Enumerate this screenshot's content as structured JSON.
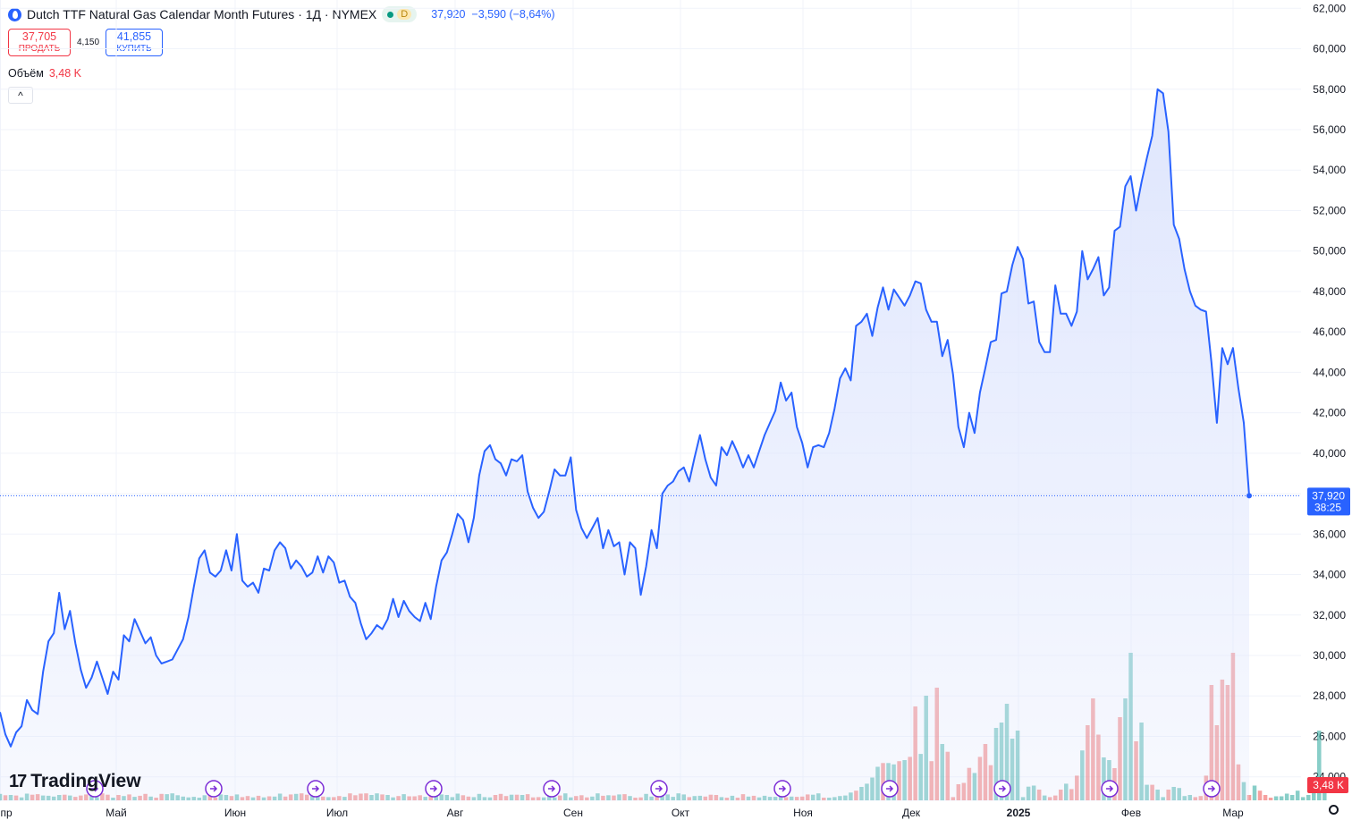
{
  "header": {
    "title": "Dutch TTF Natural Gas Calendar Month Futures · 1Д · NYMEX",
    "interval_badge": "D",
    "last_price": "37,920",
    "change": "−3,590 (−8,64%)"
  },
  "trade": {
    "sell_price": "37,705",
    "sell_label": "ПРОДАТЬ",
    "spread": "4,150",
    "buy_price": "41,855",
    "buy_label": "КУПИТЬ"
  },
  "volume_legend": {
    "label": "Объём",
    "value": "3,48 K"
  },
  "logo_text": "TradingView",
  "colors": {
    "line": "#2962ff",
    "fill": "#dfe6fd",
    "volume_up": "#26a69a",
    "volume_down": "#ef5350",
    "price_tag": "#2962ff",
    "volume_tag": "#f23645",
    "event_marker": "#7b2cd6"
  },
  "chart_data": {
    "type": "area",
    "y_axis": {
      "ticks": [
        "62,000",
        "60,000",
        "58,000",
        "56,000",
        "54,000",
        "52,000",
        "50,000",
        "48,000",
        "46,000",
        "44,000",
        "42,000",
        "40,000",
        "38,000",
        "36,000",
        "34,000",
        "32,000",
        "30,000",
        "28,000",
        "26,000",
        "24,000"
      ],
      "ylim": [
        23.5,
        62.5
      ]
    },
    "x_axis": {
      "labels": [
        "пр",
        "Май",
        "Июн",
        "Июл",
        "Авг",
        "Сен",
        "Окт",
        "Ноя",
        "Дек",
        "2025",
        "Фев",
        "Мар"
      ]
    },
    "last_value_label": {
      "price": "37,920",
      "countdown": "38:25"
    },
    "volume_label": "3,48 K",
    "grid": true,
    "series": [
      {
        "values": [
          27.2,
          26.1,
          25.5,
          26.2,
          26.5,
          27.8,
          27.3,
          27.1,
          29.2,
          30.7,
          31.1,
          33.1,
          31.3,
          32.2,
          30.6,
          29.3,
          28.4,
          28.9,
          29.7,
          28.9,
          28.1,
          29.2,
          28.8,
          31.0,
          30.7,
          31.8,
          31.2,
          30.6,
          30.9,
          30.0,
          29.6,
          29.7,
          29.8,
          30.3,
          30.8,
          31.9,
          33.4,
          34.8,
          35.2,
          34.1,
          33.9,
          34.2,
          35.2,
          34.2,
          36.0,
          33.7,
          33.4,
          33.6,
          33.1,
          34.3,
          34.2,
          35.2,
          35.6,
          35.3,
          34.3,
          34.7,
          34.4,
          33.9,
          34.1,
          34.9,
          34.1,
          34.9,
          34.6,
          33.6,
          33.7,
          32.9,
          32.6,
          31.6,
          30.8,
          31.1,
          31.5,
          31.3,
          31.8,
          32.8,
          31.9,
          32.7,
          32.2,
          31.9,
          31.7,
          32.6,
          31.8,
          33.4,
          34.7,
          35.1,
          36.0,
          37.0,
          36.7,
          35.6,
          36.8,
          38.9,
          40.1,
          40.4,
          39.7,
          39.5,
          38.9,
          39.7,
          39.6,
          39.9,
          38.1,
          37.3,
          36.8,
          37.1,
          38.1,
          39.2,
          38.9,
          38.9,
          39.8,
          37.2,
          36.3,
          35.8,
          36.3,
          36.8,
          35.3,
          36.2,
          35.4,
          35.6,
          34.0,
          35.6,
          35.3,
          33.0,
          34.4,
          36.2,
          35.3,
          38.0,
          38.4,
          38.6,
          39.1,
          39.3,
          38.6,
          39.8,
          40.9,
          39.7,
          38.8,
          38.4,
          40.3,
          39.9,
          40.6,
          40.0,
          39.3,
          39.9,
          39.3,
          40.1,
          40.9,
          41.5,
          42.1,
          43.5,
          42.6,
          43.0,
          41.3,
          40.5,
          39.3,
          40.3,
          40.4,
          40.3,
          41.0,
          42.2,
          43.7,
          44.2,
          43.6,
          46.3,
          46.5,
          46.9,
          45.8,
          47.2,
          48.2,
          47.1,
          48.1,
          47.7,
          47.3,
          47.8,
          48.5,
          48.4,
          47.1,
          46.5,
          46.5,
          44.8,
          45.6,
          43.9,
          41.3,
          40.3,
          42.0,
          41.0,
          43.0,
          44.2,
          45.5,
          45.6,
          47.9,
          48.0,
          49.3,
          50.2,
          49.6,
          47.4,
          47.5,
          45.5,
          45.0,
          45.0,
          48.3,
          46.9,
          46.9,
          46.3,
          47.0,
          50.0,
          48.6,
          49.1,
          49.7,
          47.8,
          48.2,
          51.0,
          51.2,
          53.2,
          53.7,
          52.0,
          53.4,
          54.6,
          55.7,
          58.0,
          57.8,
          55.9,
          51.3,
          50.6,
          49.1,
          48.0,
          47.3,
          47.1,
          47.0,
          44.5,
          41.5,
          45.2,
          44.4,
          45.2,
          43.2,
          41.5,
          37.9
        ]
      }
    ],
    "volume_series": {
      "values": [
        0.24,
        0.19,
        0.2,
        0.18,
        0.11,
        0.25,
        0.21,
        0.23,
        0.18,
        0.17,
        0.14,
        0.2,
        0.21,
        0.18,
        0.13,
        0.18,
        0.22,
        0.22,
        0.12,
        0.26,
        0.21,
        0.1,
        0.2,
        0.16,
        0.22,
        0.13,
        0.17,
        0.24,
        0.14,
        0.1,
        0.24,
        0.23,
        0.26,
        0.19,
        0.14,
        0.11,
        0.13,
        0.1,
        0.19,
        0.21,
        0.1,
        0.22,
        0.2,
        0.16,
        0.22,
        0.12,
        0.16,
        0.11,
        0.17,
        0.11,
        0.15,
        0.14,
        0.25,
        0.14,
        0.22,
        0.24,
        0.26,
        0.21,
        0.24,
        0.24,
        0.14,
        0.12,
        0.12,
        0.16,
        0.13,
        0.26,
        0.19,
        0.25,
        0.26,
        0.2,
        0.26,
        0.22,
        0.2,
        0.11,
        0.16,
        0.23,
        0.15,
        0.15,
        0.19,
        0.13,
        0.16,
        0.24,
        0.22,
        0.2,
        0.12,
        0.25,
        0.19,
        0.14,
        0.12,
        0.24,
        0.12,
        0.11,
        0.2,
        0.24,
        0.16,
        0.21,
        0.21,
        0.2,
        0.23,
        0.11,
        0.12,
        0.11,
        0.2,
        0.11,
        0.18,
        0.26,
        0.11,
        0.16,
        0.19,
        0.11,
        0.14,
        0.26,
        0.17,
        0.19,
        0.18,
        0.22,
        0.23,
        0.16,
        0.1,
        0.11,
        0.24,
        0.14,
        0.18,
        0.16,
        0.22,
        0.13,
        0.26,
        0.22,
        0.12,
        0.16,
        0.17,
        0.14,
        0.21,
        0.2,
        0.12,
        0.1,
        0.17,
        0.1,
        0.23,
        0.14,
        0.17,
        0.11,
        0.17,
        0.13,
        0.13,
        0.14,
        0.12,
        0.14,
        0.13,
        0.14,
        0.22,
        0.21,
        0.26,
        0.1,
        0.1,
        0.12,
        0.16,
        0.18,
        0.29,
        0.36,
        0.5,
        0.62,
        0.85,
        1.25,
        1.39,
        1.39,
        1.34,
        1.46,
        1.5,
        1.62,
        3.5,
        1.73,
        3.9,
        1.46,
        4.2,
        2.1,
        1.81,
        0.12,
        0.6,
        0.65,
        1.21,
        1.02,
        1.62,
        2.1,
        1.31,
        2.7,
        2.9,
        3.6,
        2.3,
        2.6,
        0.12,
        0.51,
        0.55,
        0.4,
        0.18,
        0.12,
        0.18,
        0.4,
        0.62,
        0.42,
        0.92,
        1.86,
        2.8,
        3.8,
        2.45,
        1.6,
        1.5,
        1.2,
        3.1,
        3.8,
        5.5,
        2.2,
        2.9,
        0.58,
        0.58,
        0.4,
        0.12,
        0.4,
        0.5,
        0.46,
        0.16,
        0.2,
        0.12,
        0.16,
        0.92,
        4.3,
        2.8,
        4.5,
        4.3,
        5.5,
        1.34,
        0.68,
        0.2,
        0.55,
        0.36,
        0.2,
        0.1,
        0.15,
        0.15,
        0.25,
        0.2,
        0.36,
        0.12,
        0.2,
        0.7,
        2.6,
        0.8
      ],
      "down": [
        false,
        true,
        false,
        true,
        false,
        false,
        true,
        true,
        false,
        false,
        false,
        false,
        true,
        false,
        true,
        true,
        true,
        false,
        false,
        true,
        true,
        false,
        true,
        false,
        true,
        false,
        true,
        true,
        false,
        true,
        true,
        false,
        false,
        false,
        false,
        false,
        false,
        false,
        false,
        true,
        true,
        false,
        false,
        true,
        false,
        true,
        true,
        false,
        true,
        false,
        true,
        false,
        false,
        true,
        true,
        false,
        true,
        true,
        false,
        false,
        true,
        false,
        true,
        true,
        false,
        true,
        true,
        true,
        true,
        false,
        false,
        true,
        false,
        false,
        true,
        false,
        true,
        true,
        true,
        false,
        true,
        false,
        false,
        false,
        false,
        false,
        true,
        true,
        false,
        false,
        false,
        false,
        true,
        true,
        true,
        false,
        true,
        false,
        true,
        true,
        true,
        false,
        false,
        false,
        true,
        false,
        false,
        true,
        true,
        true,
        false,
        false,
        true,
        false,
        true,
        false,
        true,
        false,
        true,
        true,
        false,
        false,
        true,
        false,
        false,
        false,
        false,
        false,
        true,
        false,
        false,
        true,
        true,
        true,
        false,
        true,
        false,
        true,
        true,
        false,
        true,
        false,
        false,
        false,
        false,
        false,
        true,
        false,
        true,
        true,
        true,
        false,
        false,
        true,
        false,
        false,
        false,
        false,
        false,
        true,
        false,
        false,
        false,
        false,
        true,
        false,
        false,
        true,
        false,
        true,
        true,
        false,
        false,
        true,
        true,
        false,
        true,
        true,
        true,
        true,
        true,
        false,
        true,
        true,
        true,
        false,
        false,
        false,
        false,
        false,
        false,
        false,
        false,
        true,
        false,
        true,
        true,
        true,
        false,
        true,
        true,
        false,
        true,
        true,
        true,
        false,
        false,
        true,
        true,
        false,
        false,
        true,
        false,
        false,
        true,
        false,
        false,
        true,
        false,
        false,
        false,
        false,
        true,
        true,
        true,
        true,
        true,
        true,
        true,
        true,
        true,
        false,
        true,
        false,
        true,
        true,
        true
      ]
    },
    "event_markers": 11
  }
}
